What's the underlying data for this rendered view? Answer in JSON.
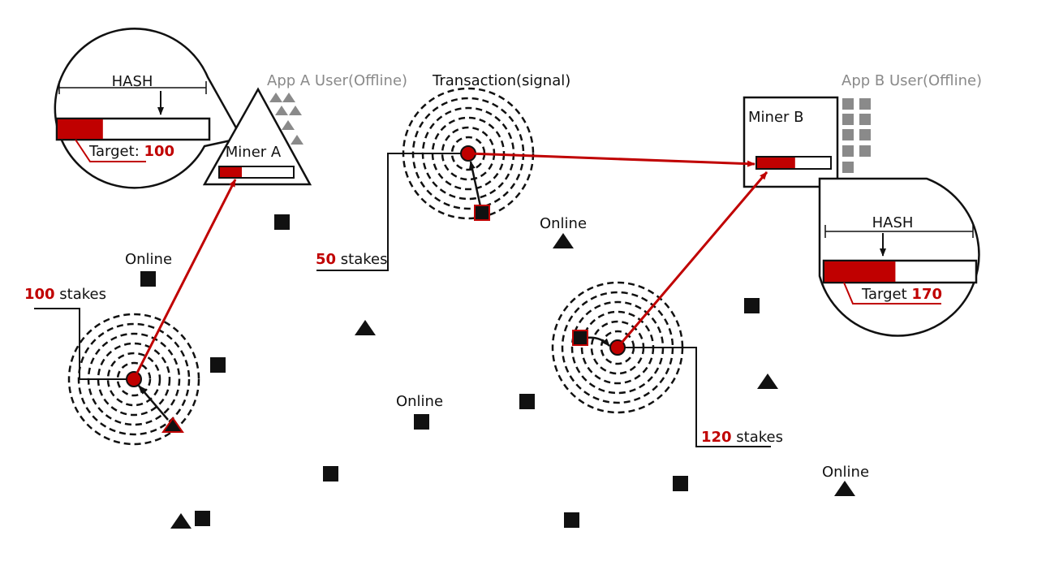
{
  "colors": {
    "accent": "#c00000",
    "ink": "#111111",
    "muted": "#8a8a8a"
  },
  "app_a": {
    "user_label": "App A User(Offline)",
    "miner_label": "Miner A",
    "miner_progress": 0.3,
    "callout": {
      "hash_label": "HASH",
      "target_prefix": "Target: ",
      "target_value": "100",
      "progress": 0.3
    }
  },
  "app_b": {
    "user_label": "App B User(Offline)",
    "miner_label": "Miner B",
    "miner_progress": 0.52,
    "callout": {
      "hash_label": "HASH",
      "target_prefix": "Target ",
      "target_value": "170",
      "progress": 0.47
    }
  },
  "transaction_label": "Transaction(signal)",
  "stakes": [
    {
      "value": "100",
      "unit": " stakes"
    },
    {
      "value": "50",
      "unit": " stakes"
    },
    {
      "value": "120",
      "unit": " stakes"
    }
  ],
  "online_labels": [
    "Online",
    "Online",
    "Online",
    "Online"
  ]
}
